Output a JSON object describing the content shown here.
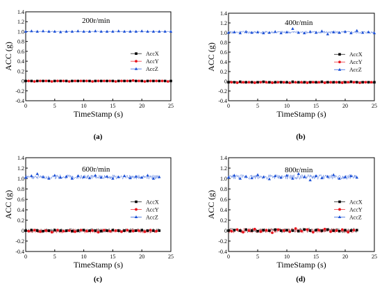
{
  "figure": {
    "ylabel": "ACC (g)",
    "xlabel": "TimeStamp (s)",
    "legend_position": "middle-right"
  },
  "chart_data": [
    {
      "type": "scatter",
      "caption": "(a)",
      "title": "200r/min",
      "xlabel": "TimeStamp (s)",
      "ylabel": "ACC (g)",
      "xlim": [
        0,
        25
      ],
      "ylim": [
        -0.4,
        1.4
      ],
      "xticks": [
        0,
        5,
        10,
        15,
        20,
        25
      ],
      "xticklabels": [
        "0",
        "5",
        "10",
        "15",
        "20",
        "25"
      ],
      "yticks": [
        -0.4,
        -0.2,
        0,
        0.2,
        0.4,
        0.6,
        0.8,
        1.0,
        1.2,
        1.4
      ],
      "yticklabels": [
        "-0.4",
        "-0.2",
        "0",
        "0.2",
        "0.4",
        "0.6",
        "0.8",
        "1.0",
        "1.2",
        "1.4"
      ],
      "series": [
        {
          "name": "AccX",
          "color": "#000000",
          "marker": "square",
          "x": [
            0,
            1,
            2,
            3,
            4,
            5,
            6,
            7,
            8,
            9,
            10,
            11,
            12,
            13,
            14,
            15,
            16,
            17,
            18,
            19,
            20,
            21,
            22,
            23,
            24,
            25
          ],
          "y": [
            0.0,
            0.0,
            0.0,
            0.0,
            0.0,
            0.0,
            0.0,
            0.0,
            0.0,
            0.0,
            0.0,
            0.0,
            0.0,
            0.0,
            0.0,
            0.0,
            0.0,
            0.0,
            0.0,
            0.0,
            0.0,
            0.0,
            0.0,
            0.0,
            0.0,
            0.0
          ]
        },
        {
          "name": "AccY",
          "color": "#e8141c",
          "marker": "circle",
          "x": [
            0.5,
            1.5,
            2.5,
            3.5,
            4.5,
            5.5,
            6.5,
            7.5,
            8.5,
            9.5,
            10.5,
            11.5,
            12.5,
            13.5,
            14.5,
            15.5,
            16.5,
            17.5,
            18.5,
            19.5,
            20.5,
            21.5,
            22.5,
            23.5,
            24.5
          ],
          "y": [
            0.0,
            -0.01,
            0.0,
            0.0,
            -0.01,
            0.0,
            0.0,
            -0.01,
            0.0,
            0.0,
            0.0,
            -0.01,
            0.0,
            0.0,
            0.0,
            -0.01,
            0.0,
            0.0,
            0.01,
            0.0,
            -0.01,
            0.0,
            0.0,
            0.0,
            -0.01
          ]
        },
        {
          "name": "AccZ",
          "color": "#1a4fd6",
          "marker": "triangle",
          "x": [
            0,
            1,
            2,
            3,
            4,
            5,
            6,
            7,
            8,
            9,
            10,
            11,
            12,
            13,
            14,
            15,
            16,
            17,
            18,
            19,
            20,
            21,
            22,
            23,
            24,
            25
          ],
          "y": [
            1.0,
            1.01,
            1.0,
            1.01,
            1.0,
            1.0,
            0.99,
            1.0,
            1.0,
            1.01,
            1.0,
            1.0,
            1.01,
            1.0,
            1.0,
            1.0,
            1.01,
            1.0,
            1.0,
            1.0,
            1.01,
            1.0,
            1.0,
            1.0,
            1.0,
            1.0
          ]
        }
      ]
    },
    {
      "type": "scatter",
      "caption": "(b)",
      "title": "400r/min",
      "xlabel": "TimeStamp (s)",
      "ylabel": "ACC (g)",
      "xlim": [
        0,
        25
      ],
      "ylim": [
        -0.4,
        1.4
      ],
      "xticks": [
        0,
        5,
        10,
        15,
        20,
        25
      ],
      "xticklabels": [
        "0",
        "5",
        "10",
        "15",
        "20",
        "25"
      ],
      "yticks": [
        -0.4,
        -0.2,
        0,
        0.2,
        0.4,
        0.6,
        0.8,
        1.0,
        1.2,
        1.4
      ],
      "yticklabels": [
        "-0.4",
        "-0.2",
        "0",
        "0.2",
        "0.4",
        "0.6",
        "0.8",
        "1.0",
        "1.2",
        "1.4"
      ],
      "series": [
        {
          "name": "AccX",
          "color": "#000000",
          "marker": "square",
          "x": [
            0,
            1,
            2,
            3,
            4,
            5,
            6,
            7,
            8,
            9,
            10,
            11,
            12,
            13,
            14,
            15,
            16,
            17,
            18,
            19,
            20,
            21,
            22,
            23,
            24,
            25
          ],
          "y": [
            -0.02,
            -0.02,
            -0.01,
            -0.02,
            -0.02,
            -0.02,
            -0.01,
            -0.02,
            -0.02,
            -0.02,
            -0.02,
            -0.01,
            -0.02,
            -0.02,
            -0.02,
            -0.02,
            -0.01,
            -0.02,
            -0.02,
            -0.02,
            -0.02,
            -0.01,
            -0.02,
            -0.02,
            -0.02,
            -0.02
          ]
        },
        {
          "name": "AccY",
          "color": "#e8141c",
          "marker": "circle",
          "x": [
            0.5,
            1.5,
            2.5,
            3.5,
            4.5,
            5.5,
            6.5,
            7.5,
            8.5,
            9.5,
            10.5,
            11.5,
            12.5,
            13.5,
            14.5,
            15.5,
            16.5,
            17.5,
            18.5,
            19.5,
            20.5,
            21.5,
            22.5,
            23.5,
            24.5
          ],
          "y": [
            -0.02,
            -0.03,
            -0.02,
            -0.02,
            -0.03,
            -0.02,
            -0.02,
            -0.03,
            -0.02,
            -0.02,
            -0.03,
            -0.02,
            -0.02,
            -0.03,
            -0.02,
            -0.02,
            -0.03,
            -0.02,
            -0.02,
            -0.03,
            -0.02,
            -0.02,
            -0.03,
            -0.02,
            -0.02
          ]
        },
        {
          "name": "AccZ",
          "color": "#1a4fd6",
          "marker": "triangle",
          "x": [
            0,
            1,
            2,
            3,
            4,
            5,
            6,
            7,
            8,
            9,
            10,
            11,
            12,
            13,
            14,
            15,
            16,
            17,
            18,
            19,
            20,
            21,
            22,
            23,
            24,
            25
          ],
          "y": [
            1.0,
            1.01,
            0.99,
            1.02,
            1.0,
            1.01,
            0.99,
            1.0,
            1.02,
            0.99,
            1.01,
            1.08,
            1.0,
            0.99,
            1.02,
            1.0,
            1.03,
            0.97,
            1.01,
            1.0,
            1.02,
            0.99,
            1.04,
            1.0,
            1.01,
            0.99
          ]
        }
      ]
    },
    {
      "type": "scatter",
      "caption": "(c)",
      "title": "600r/min",
      "xlabel": "TimeStamp (s)",
      "ylabel": "ACC (g)",
      "xlim": [
        0,
        25
      ],
      "ylim": [
        -0.4,
        1.4
      ],
      "xticks": [
        0,
        5,
        10,
        15,
        20,
        25
      ],
      "xticklabels": [
        "0",
        "5",
        "10",
        "15",
        "20",
        "25"
      ],
      "yticks": [
        -0.4,
        -0.2,
        0,
        0.2,
        0.4,
        0.6,
        0.8,
        1.0,
        1.2,
        1.4
      ],
      "yticklabels": [
        "-0.4",
        "-0.2",
        "0",
        "0.2",
        "0.4",
        "0.6",
        "0.8",
        "1.0",
        "1.2",
        "1.4"
      ],
      "series": [
        {
          "name": "AccX",
          "color": "#000000",
          "marker": "square",
          "x": [
            0,
            1,
            2,
            3,
            4,
            5,
            6,
            7,
            8,
            9,
            10,
            11,
            12,
            13,
            14,
            15,
            16,
            17,
            18,
            19,
            20,
            21,
            22,
            23
          ],
          "y": [
            0.0,
            0.01,
            0.0,
            -0.01,
            0.0,
            0.01,
            0.0,
            0.0,
            -0.01,
            0.0,
            0.01,
            0.0,
            0.0,
            -0.01,
            0.0,
            0.01,
            0.0,
            0.0,
            -0.01,
            0.0,
            0.01,
            0.0,
            0.0,
            0.0
          ]
        },
        {
          "name": "AccY",
          "color": "#e8141c",
          "marker": "circle",
          "x": [
            0.5,
            1.5,
            2.5,
            3.5,
            4.5,
            5.5,
            6.5,
            7.5,
            8.5,
            9.5,
            10.5,
            11.5,
            12.5,
            13.5,
            14.5,
            15.5,
            16.5,
            17.5,
            18.5,
            19.5,
            20.5,
            21.5,
            22.5
          ],
          "y": [
            -0.01,
            0.01,
            -0.02,
            0.0,
            -0.03,
            0.01,
            -0.01,
            0.0,
            -0.02,
            0.01,
            -0.01,
            0.0,
            -0.03,
            0.01,
            -0.01,
            0.0,
            -0.02,
            0.01,
            -0.01,
            0.0,
            -0.02,
            0.01,
            -0.01
          ]
        },
        {
          "name": "AccZ",
          "color": "#1a4fd6",
          "marker": "triangle",
          "x": [
            0,
            1,
            2,
            3,
            4,
            5,
            6,
            7,
            8,
            9,
            10,
            11,
            12,
            13,
            14,
            15,
            16,
            17,
            18,
            19,
            20,
            21,
            22,
            23
          ],
          "y": [
            1.02,
            1.05,
            1.09,
            1.03,
            1.0,
            1.06,
            1.02,
            1.04,
            1.0,
            1.05,
            1.03,
            1.01,
            1.06,
            1.02,
            1.04,
            1.0,
            1.03,
            1.05,
            1.01,
            1.04,
            1.02,
            1.06,
            1.0,
            1.03
          ]
        }
      ]
    },
    {
      "type": "scatter",
      "caption": "(d)",
      "title": "800r/min",
      "xlabel": "TimeStamp (s)",
      "ylabel": "ACC (g)",
      "xlim": [
        0,
        25
      ],
      "ylim": [
        -0.4,
        1.4
      ],
      "xticks": [
        0,
        5,
        10,
        15,
        20,
        25
      ],
      "xticklabels": [
        "0",
        "5",
        "10",
        "15",
        "20",
        "25"
      ],
      "yticks": [
        -0.4,
        -0.2,
        0,
        0.2,
        0.4,
        0.6,
        0.8,
        1.0,
        1.2,
        1.4
      ],
      "yticklabels": [
        "-0.4",
        "-0.2",
        "0",
        "0.2",
        "0.4",
        "0.6",
        "0.8",
        "1.0",
        "1.2",
        "1.4"
      ],
      "series": [
        {
          "name": "AccX",
          "color": "#000000",
          "marker": "square",
          "x": [
            0,
            1,
            2,
            3,
            4,
            5,
            6,
            7,
            8,
            9,
            10,
            11,
            12,
            13,
            14,
            15,
            16,
            17,
            18,
            19,
            20,
            21,
            22
          ],
          "y": [
            0.0,
            0.01,
            0.0,
            0.02,
            0.0,
            -0.01,
            0.01,
            0.0,
            0.02,
            0.0,
            0.01,
            0.0,
            -0.01,
            0.02,
            0.0,
            0.01,
            0.0,
            0.02,
            0.0,
            -0.01,
            0.01,
            0.0,
            0.01
          ]
        },
        {
          "name": "AccY",
          "color": "#e8141c",
          "marker": "circle",
          "x": [
            0.5,
            1.5,
            2.5,
            3.5,
            4.5,
            5.5,
            6.5,
            7.5,
            8.5,
            9.5,
            10.5,
            11.5,
            12.5,
            13.5,
            14.5,
            15.5,
            16.5,
            17.5,
            18.5,
            19.5,
            20.5,
            21.5
          ],
          "y": [
            -0.01,
            0.02,
            -0.03,
            0.0,
            0.03,
            -0.02,
            0.01,
            -0.04,
            0.02,
            0.0,
            -0.02,
            0.04,
            -0.01,
            0.02,
            -0.03,
            0.01,
            0.03,
            -0.02,
            0.0,
            0.02,
            -0.03,
            0.01
          ]
        },
        {
          "name": "AccZ",
          "color": "#1a4fd6",
          "marker": "triangle",
          "x": [
            0,
            1,
            2,
            3,
            4,
            5,
            6,
            7,
            8,
            9,
            10,
            11,
            12,
            13,
            14,
            15,
            16,
            17,
            18,
            19,
            20,
            21,
            22
          ],
          "y": [
            1.02,
            1.06,
            1.0,
            1.04,
            1.01,
            1.07,
            1.03,
            0.99,
            1.05,
            1.02,
            1.06,
            1.0,
            1.09,
            1.03,
            0.97,
            1.05,
            1.01,
            1.04,
            1.07,
            1.0,
            1.03,
            1.05,
            1.02
          ]
        }
      ]
    }
  ]
}
